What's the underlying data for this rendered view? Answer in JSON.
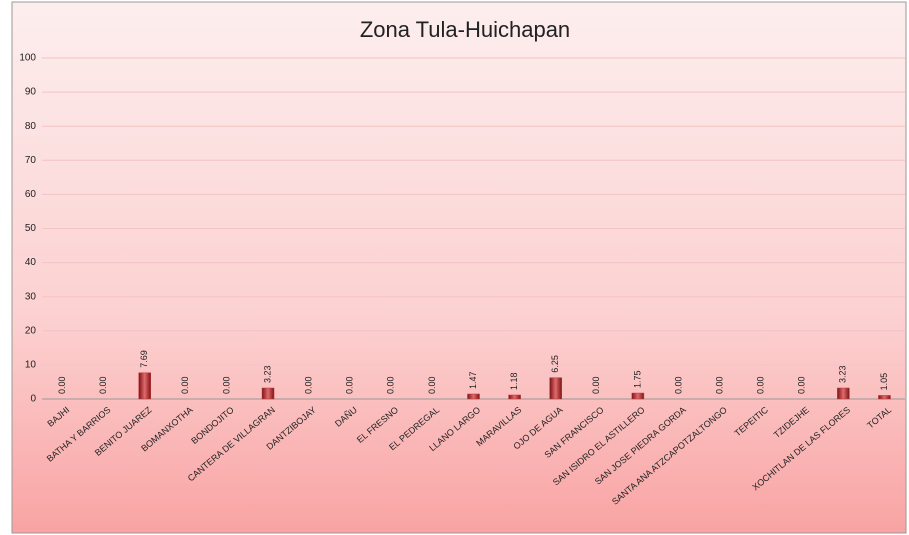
{
  "chart_data": {
    "type": "bar",
    "title": "Zona Tula-Huichapan",
    "categories": [
      "BAJHI",
      "BATHA Y BARRIOS",
      "BENITO JUAREZ",
      "BOMANXOTHA",
      "BONDOJITO",
      "CANTERA DE VILLAGRAN",
      "DANTZIBOJAY",
      "DAÑU",
      "EL FRESNO",
      "EL PEDREGAL",
      "LLANO LARGO",
      "MARAVILLAS",
      "OJO DE AGUA",
      "SAN FRANCISCO",
      "SAN ISIDRO EL ASTILLERO",
      "SAN JOSE PIEDRA GORDA",
      "SANTA ANA ATZCAPOTZALTONGO",
      "TEPEITIC",
      "TZIDEJHE",
      "XOCHITLAN DE LAS FLORES",
      "TOTAL"
    ],
    "values": [
      0,
      0,
      7.69,
      0,
      0,
      3.23,
      0,
      0,
      0,
      0,
      1.47,
      1.18,
      6.25,
      0,
      1.75,
      0,
      0,
      0,
      0,
      3.23,
      1.05
    ],
    "value_labels": [
      "0.00",
      "0.00",
      "7.69",
      "0.00",
      "0.00",
      "3.23",
      "0.00",
      "0.00",
      "0.00",
      "0.00",
      "1.47",
      "1.18",
      "6.25",
      "0.00",
      "1.75",
      "0.00",
      "0.00",
      "0.00",
      "0.00",
      "3.23",
      "1.05"
    ],
    "color": "#c0383a",
    "ylim": [
      0,
      100
    ],
    "yticks": [
      0,
      10,
      20,
      30,
      40,
      50,
      60,
      70,
      80,
      90,
      100
    ],
    "grid": true
  }
}
